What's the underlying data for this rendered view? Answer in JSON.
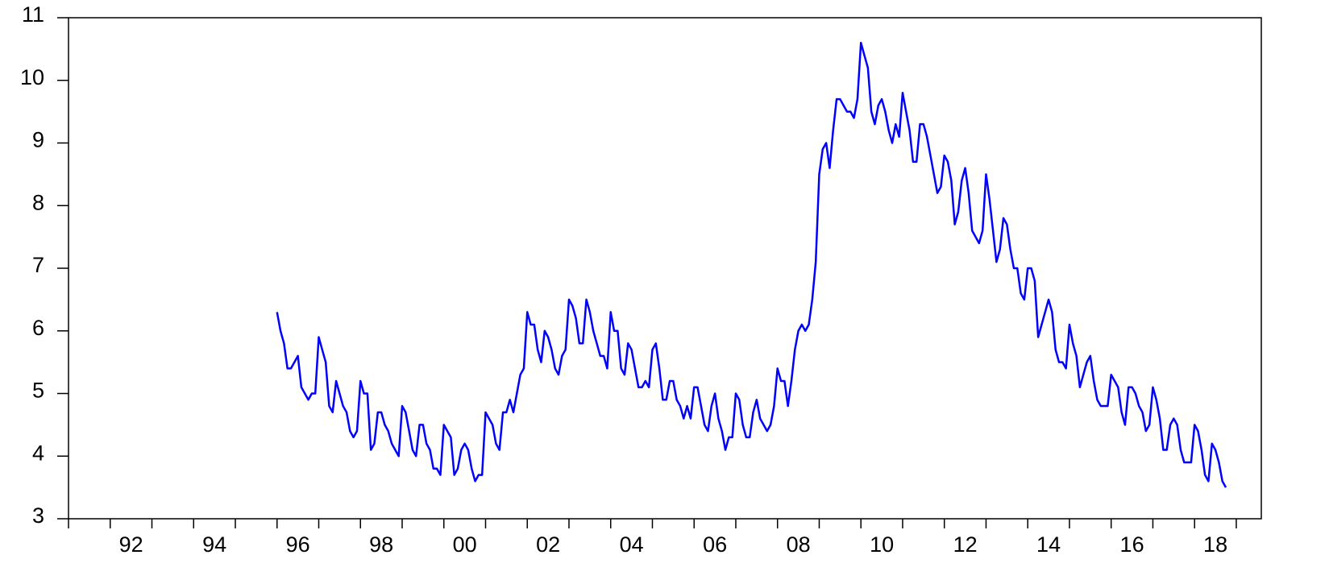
{
  "chart_data": {
    "type": "line",
    "xlim": [
      1991,
      2019.6
    ],
    "ylim": [
      3,
      11
    ],
    "yticks": [
      3,
      4,
      5,
      6,
      7,
      8,
      9,
      10,
      11
    ],
    "xticks": [
      {
        "value": 1992.5,
        "label": "92"
      },
      {
        "value": 1994.5,
        "label": "94"
      },
      {
        "value": 1996.5,
        "label": "96"
      },
      {
        "value": 1998.5,
        "label": "98"
      },
      {
        "value": 2000.5,
        "label": "00"
      },
      {
        "value": 2002.5,
        "label": "02"
      },
      {
        "value": 2004.5,
        "label": "04"
      },
      {
        "value": 2006.5,
        "label": "06"
      },
      {
        "value": 2008.5,
        "label": "08"
      },
      {
        "value": 2010.5,
        "label": "10"
      },
      {
        "value": 2012.5,
        "label": "12"
      },
      {
        "value": 2014.5,
        "label": "14"
      },
      {
        "value": 2016.5,
        "label": "16"
      },
      {
        "value": 2018.5,
        "label": "18"
      }
    ],
    "xminorticks": [
      1991,
      1992,
      1993,
      1994,
      1995,
      1996,
      1997,
      1998,
      1999,
      2000,
      2001,
      2002,
      2003,
      2004,
      2005,
      2006,
      2007,
      2008,
      2009,
      2010,
      2011,
      2012,
      2013,
      2014,
      2015,
      2016,
      2017,
      2018,
      2019
    ],
    "grid": false,
    "x": [
      1996.0,
      1996.083,
      1996.167,
      1996.25,
      1996.333,
      1996.417,
      1996.5,
      1996.583,
      1996.667,
      1996.75,
      1996.833,
      1996.917,
      1997.0,
      1997.083,
      1997.167,
      1997.25,
      1997.333,
      1997.417,
      1997.5,
      1997.583,
      1997.667,
      1997.75,
      1997.833,
      1997.917,
      1998.0,
      1998.083,
      1998.167,
      1998.25,
      1998.333,
      1998.417,
      1998.5,
      1998.583,
      1998.667,
      1998.75,
      1998.833,
      1998.917,
      1999.0,
      1999.083,
      1999.167,
      1999.25,
      1999.333,
      1999.417,
      1999.5,
      1999.583,
      1999.667,
      1999.75,
      1999.833,
      1999.917,
      2000.0,
      2000.083,
      2000.167,
      2000.25,
      2000.333,
      2000.417,
      2000.5,
      2000.583,
      2000.667,
      2000.75,
      2000.833,
      2000.917,
      2001.0,
      2001.083,
      2001.167,
      2001.25,
      2001.333,
      2001.417,
      2001.5,
      2001.583,
      2001.667,
      2001.75,
      2001.833,
      2001.917,
      2002.0,
      2002.083,
      2002.167,
      2002.25,
      2002.333,
      2002.417,
      2002.5,
      2002.583,
      2002.667,
      2002.75,
      2002.833,
      2002.917,
      2003.0,
      2003.083,
      2003.167,
      2003.25,
      2003.333,
      2003.417,
      2003.5,
      2003.583,
      2003.667,
      2003.75,
      2003.833,
      2003.917,
      2004.0,
      2004.083,
      2004.167,
      2004.25,
      2004.333,
      2004.417,
      2004.5,
      2004.583,
      2004.667,
      2004.75,
      2004.833,
      2004.917,
      2005.0,
      2005.083,
      2005.167,
      2005.25,
      2005.333,
      2005.417,
      2005.5,
      2005.583,
      2005.667,
      2005.75,
      2005.833,
      2005.917,
      2006.0,
      2006.083,
      2006.167,
      2006.25,
      2006.333,
      2006.417,
      2006.5,
      2006.583,
      2006.667,
      2006.75,
      2006.833,
      2006.917,
      2007.0,
      2007.083,
      2007.167,
      2007.25,
      2007.333,
      2007.417,
      2007.5,
      2007.583,
      2007.667,
      2007.75,
      2007.833,
      2007.917,
      2008.0,
      2008.083,
      2008.167,
      2008.25,
      2008.333,
      2008.417,
      2008.5,
      2008.583,
      2008.667,
      2008.75,
      2008.833,
      2008.917,
      2009.0,
      2009.083,
      2009.167,
      2009.25,
      2009.333,
      2009.417,
      2009.5,
      2009.583,
      2009.667,
      2009.75,
      2009.833,
      2009.917,
      2010.0,
      2010.083,
      2010.167,
      2010.25,
      2010.333,
      2010.417,
      2010.5,
      2010.583,
      2010.667,
      2010.75,
      2010.833,
      2010.917,
      2011.0,
      2011.083,
      2011.167,
      2011.25,
      2011.333,
      2011.417,
      2011.5,
      2011.583,
      2011.667,
      2011.75,
      2011.833,
      2011.917,
      2012.0,
      2012.083,
      2012.167,
      2012.25,
      2012.333,
      2012.417,
      2012.5,
      2012.583,
      2012.667,
      2012.75,
      2012.833,
      2012.917,
      2013.0,
      2013.083,
      2013.167,
      2013.25,
      2013.333,
      2013.417,
      2013.5,
      2013.583,
      2013.667,
      2013.75,
      2013.833,
      2013.917,
      2014.0,
      2014.083,
      2014.167,
      2014.25,
      2014.333,
      2014.417,
      2014.5,
      2014.583,
      2014.667,
      2014.75,
      2014.833,
      2014.917,
      2015.0,
      2015.083,
      2015.167,
      2015.25,
      2015.333,
      2015.417,
      2015.5,
      2015.583,
      2015.667,
      2015.75,
      2015.833,
      2015.917,
      2016.0,
      2016.083,
      2016.167,
      2016.25,
      2016.333,
      2016.417,
      2016.5,
      2016.583,
      2016.667,
      2016.75,
      2016.833,
      2016.917,
      2017.0,
      2017.083,
      2017.167,
      2017.25,
      2017.333,
      2017.417,
      2017.5,
      2017.583,
      2017.667,
      2017.75,
      2017.833,
      2017.917,
      2018.0,
      2018.083,
      2018.167,
      2018.25,
      2018.333,
      2018.417,
      2018.5,
      2018.583,
      2018.667,
      2018.75
    ],
    "series": [
      {
        "color": "#0000ff",
        "values": [
          6.3,
          6.0,
          5.8,
          5.4,
          5.4,
          5.5,
          5.6,
          5.1,
          5.0,
          4.9,
          5.0,
          5.0,
          5.9,
          5.7,
          5.5,
          4.8,
          4.7,
          5.2,
          5.0,
          4.8,
          4.7,
          4.4,
          4.3,
          4.4,
          5.2,
          5.0,
          5.0,
          4.1,
          4.2,
          4.7,
          4.7,
          4.5,
          4.4,
          4.2,
          4.1,
          4.0,
          4.8,
          4.7,
          4.4,
          4.1,
          4.0,
          4.5,
          4.5,
          4.2,
          4.1,
          3.8,
          3.8,
          3.7,
          4.5,
          4.4,
          4.3,
          3.7,
          3.8,
          4.1,
          4.2,
          4.1,
          3.8,
          3.6,
          3.7,
          3.7,
          4.7,
          4.6,
          4.5,
          4.2,
          4.1,
          4.7,
          4.7,
          4.9,
          4.7,
          5.0,
          5.3,
          5.4,
          6.3,
          6.1,
          6.1,
          5.7,
          5.5,
          6.0,
          5.9,
          5.7,
          5.4,
          5.3,
          5.6,
          5.7,
          6.5,
          6.4,
          6.2,
          5.8,
          5.8,
          6.5,
          6.3,
          6.0,
          5.8,
          5.6,
          5.6,
          5.4,
          6.3,
          6.0,
          6.0,
          5.4,
          5.3,
          5.8,
          5.7,
          5.4,
          5.1,
          5.1,
          5.2,
          5.1,
          5.7,
          5.8,
          5.4,
          4.9,
          4.9,
          5.2,
          5.2,
          4.9,
          4.8,
          4.6,
          4.8,
          4.6,
          5.1,
          5.1,
          4.8,
          4.5,
          4.4,
          4.8,
          5.0,
          4.6,
          4.4,
          4.1,
          4.3,
          4.3,
          5.0,
          4.9,
          4.5,
          4.3,
          4.3,
          4.7,
          4.9,
          4.6,
          4.5,
          4.4,
          4.5,
          4.8,
          5.4,
          5.2,
          5.2,
          4.8,
          5.2,
          5.7,
          6.0,
          6.1,
          6.0,
          6.1,
          6.5,
          7.1,
          8.5,
          8.9,
          9.0,
          8.6,
          9.2,
          9.7,
          9.7,
          9.6,
          9.5,
          9.5,
          9.4,
          9.7,
          10.6,
          10.4,
          10.2,
          9.5,
          9.3,
          9.6,
          9.7,
          9.5,
          9.2,
          9.0,
          9.3,
          9.1,
          9.8,
          9.5,
          9.2,
          8.7,
          8.7,
          9.3,
          9.3,
          9.1,
          8.8,
          8.5,
          8.2,
          8.3,
          8.8,
          8.7,
          8.4,
          7.7,
          7.9,
          8.4,
          8.6,
          8.2,
          7.6,
          7.5,
          7.4,
          7.6,
          8.5,
          8.1,
          7.6,
          7.1,
          7.3,
          7.8,
          7.7,
          7.3,
          7.0,
          7.0,
          6.6,
          6.5,
          7.0,
          7.0,
          6.8,
          5.9,
          6.1,
          6.3,
          6.5,
          6.3,
          5.7,
          5.5,
          5.5,
          5.4,
          6.1,
          5.8,
          5.6,
          5.1,
          5.3,
          5.5,
          5.6,
          5.2,
          4.9,
          4.8,
          4.8,
          4.8,
          5.3,
          5.2,
          5.1,
          4.7,
          4.5,
          5.1,
          5.1,
          5.0,
          4.8,
          4.7,
          4.4,
          4.5,
          5.1,
          4.9,
          4.6,
          4.1,
          4.1,
          4.5,
          4.6,
          4.5,
          4.1,
          3.9,
          3.9,
          3.9,
          4.5,
          4.4,
          4.1,
          3.7,
          3.6,
          4.2,
          4.1,
          3.9,
          3.6,
          3.5
        ]
      }
    ]
  }
}
